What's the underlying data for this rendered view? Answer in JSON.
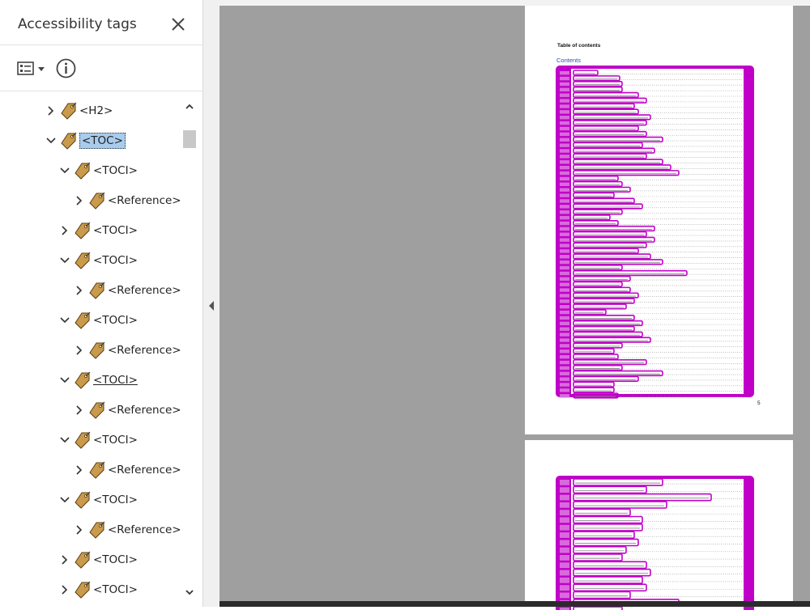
{
  "panel": {
    "title": "Accessibility tags",
    "close_icon": "close-icon",
    "options_icon": "options-menu-icon",
    "info_icon": "info-icon"
  },
  "tree": {
    "nodes": [
      {
        "label": "<H2>",
        "expanded": false,
        "selected": false
      },
      {
        "label": "<TOC>",
        "expanded": true,
        "selected": true
      },
      {
        "label": "<TOCI>",
        "expanded": true,
        "selected": false
      },
      {
        "label": "<Reference>",
        "expanded": false,
        "selected": false
      },
      {
        "label": "<TOCI>",
        "expanded": false,
        "selected": false
      },
      {
        "label": "<TOCI>",
        "expanded": true,
        "selected": false
      },
      {
        "label": "<Reference>",
        "expanded": false,
        "selected": false
      },
      {
        "label": "<TOCI>",
        "expanded": true,
        "selected": false
      },
      {
        "label": "<Reference>",
        "expanded": false,
        "selected": false
      },
      {
        "label": "<TOCI>",
        "expanded": true,
        "selected": false,
        "underlined": true
      },
      {
        "label": "<Reference>",
        "expanded": false,
        "selected": false
      },
      {
        "label": "<TOCI>",
        "expanded": true,
        "selected": false
      },
      {
        "label": "<Reference>",
        "expanded": false,
        "selected": false
      },
      {
        "label": "<TOCI>",
        "expanded": true,
        "selected": false
      },
      {
        "label": "<Reference>",
        "expanded": false,
        "selected": false
      },
      {
        "label": "<TOCI>",
        "expanded": false,
        "selected": false
      },
      {
        "label": "<TOCI>",
        "expanded": false,
        "selected": false
      }
    ]
  },
  "document": {
    "page1": {
      "heading": "Table of contents",
      "contents_label": "Contents",
      "page_number": "5"
    }
  },
  "colors": {
    "highlight": "#c000c8",
    "selection": "#a9ccec",
    "viewer_background": "#9f9f9f",
    "tag_icon": "#c99a4b"
  }
}
